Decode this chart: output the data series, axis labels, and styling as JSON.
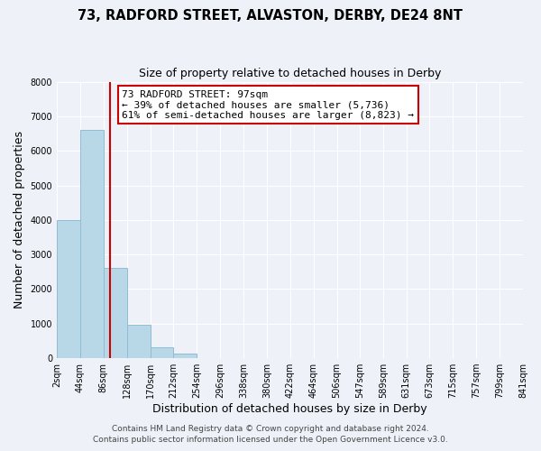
{
  "title": "73, RADFORD STREET, ALVASTON, DERBY, DE24 8NT",
  "subtitle": "Size of property relative to detached houses in Derby",
  "xlabel": "Distribution of detached houses by size in Derby",
  "ylabel": "Number of detached properties",
  "bin_edges": [
    2,
    44,
    86,
    128,
    170,
    212,
    254,
    296,
    338,
    380,
    422,
    464,
    506,
    547,
    589,
    631,
    673,
    715,
    757,
    799,
    841
  ],
  "bar_heights": [
    4000,
    6600,
    2600,
    960,
    320,
    130,
    0,
    0,
    0,
    0,
    0,
    0,
    0,
    0,
    0,
    0,
    0,
    0,
    0,
    0
  ],
  "bar_color": "#b8d8e8",
  "bar_edge_color": "#90bcd4",
  "property_line_x": 97,
  "property_line_color": "#cc0000",
  "annotation_text": "73 RADFORD STREET: 97sqm\n← 39% of detached houses are smaller (5,736)\n61% of semi-detached houses are larger (8,823) →",
  "annotation_box_facecolor": "#ffffff",
  "annotation_box_edgecolor": "#cc0000",
  "ylim": [
    0,
    8000
  ],
  "yticks": [
    0,
    1000,
    2000,
    3000,
    4000,
    5000,
    6000,
    7000,
    8000
  ],
  "xtick_labels": [
    "2sqm",
    "44sqm",
    "86sqm",
    "128sqm",
    "170sqm",
    "212sqm",
    "254sqm",
    "296sqm",
    "338sqm",
    "380sqm",
    "422sqm",
    "464sqm",
    "506sqm",
    "547sqm",
    "589sqm",
    "631sqm",
    "673sqm",
    "715sqm",
    "757sqm",
    "799sqm",
    "841sqm"
  ],
  "footer1": "Contains HM Land Registry data © Crown copyright and database right 2024.",
  "footer2": "Contains public sector information licensed under the Open Government Licence v3.0.",
  "background_color": "#eef2f8",
  "grid_color": "#ffffff",
  "title_fontsize": 10.5,
  "subtitle_fontsize": 9,
  "axis_label_fontsize": 9,
  "tick_fontsize": 7,
  "annotation_fontsize": 8,
  "footer_fontsize": 6.5
}
